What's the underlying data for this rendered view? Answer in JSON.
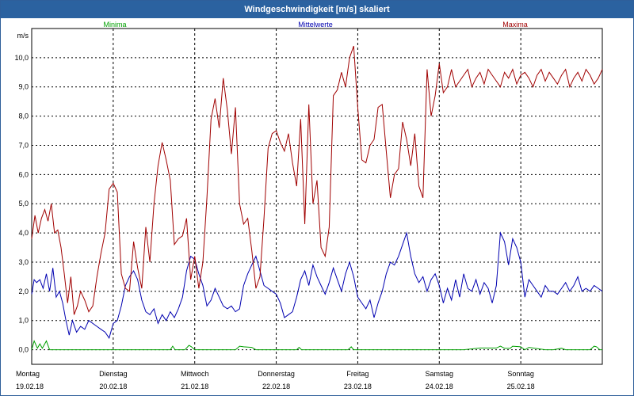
{
  "title": "Windgeschwindigkeit [m/s] skaliert",
  "colors": {
    "titlebar": "#2b62a0",
    "minima": "#00a000",
    "mittelwerte": "#0000b0",
    "maxima": "#a00000"
  },
  "chart_data": {
    "type": "line",
    "title": "Windgeschwindigkeit [m/s] skaliert",
    "ylabel": "m/s",
    "ylim": [
      -0.5,
      11.0
    ],
    "yticks": [
      0.0,
      1.0,
      2.0,
      3.0,
      4.0,
      5.0,
      6.0,
      7.0,
      8.0,
      9.0,
      10.0
    ],
    "ytick_labels": [
      "0,0",
      "1,0",
      "2,0",
      "3,0",
      "4,0",
      "5,0",
      "6,0",
      "7,0",
      "8,0",
      "9,0",
      "10,0"
    ],
    "xlim": [
      0,
      7
    ],
    "day_labels": [
      {
        "day": "Montag",
        "date": "19.02.18"
      },
      {
        "day": "Dienstag",
        "date": "20.02.18"
      },
      {
        "day": "Mittwoch",
        "date": "21.02.18"
      },
      {
        "day": "Donnerstag",
        "date": "22.02.18"
      },
      {
        "day": "Freitag",
        "date": "23.02.18"
      },
      {
        "day": "Samstag",
        "date": "24.02.18"
      },
      {
        "day": "Sonntag",
        "date": "25.02.18"
      }
    ],
    "grid": true,
    "series": [
      {
        "name": "Minima",
        "color": "#00a000",
        "x": [
          0,
          0.03,
          0.07,
          0.1,
          0.13,
          0.18,
          0.22,
          0.26,
          0.3,
          0.5,
          1.0,
          1.5,
          1.7,
          1.73,
          1.76,
          1.8,
          1.88,
          1.93,
          1.96,
          2.0,
          2.5,
          2.55,
          2.6,
          2.7,
          2.75,
          3.0,
          3.25,
          3.28,
          3.31,
          3.5,
          3.88,
          3.92,
          3.95,
          4.0,
          4.5,
          5.0,
          5.3,
          5.5,
          5.7,
          5.75,
          5.8,
          5.87,
          5.9,
          6.0,
          6.05,
          6.1,
          6.3,
          6.4,
          6.5,
          6.55,
          6.7,
          6.85,
          6.9,
          6.93,
          6.97,
          7.0
        ],
        "y": [
          0.0,
          0.3,
          0.05,
          0.2,
          0.05,
          0.3,
          0.0,
          0.0,
          0.0,
          0.0,
          0.0,
          0.0,
          0.0,
          0.12,
          0.0,
          0.0,
          0.0,
          0.15,
          0.1,
          0.0,
          0.0,
          0.12,
          0.1,
          0.08,
          0.0,
          0.0,
          0.0,
          0.08,
          0.0,
          0.0,
          0.0,
          0.1,
          0.0,
          0.0,
          0.0,
          0.0,
          0.0,
          0.06,
          0.06,
          0.12,
          0.05,
          0.05,
          0.12,
          0.1,
          0.0,
          0.08,
          0.0,
          0.0,
          0.05,
          0.0,
          0.0,
          0.0,
          0.12,
          0.1,
          0.0,
          0.0
        ]
      },
      {
        "name": "Mittelwerte",
        "color": "#0000b0",
        "x": [
          0,
          0.03,
          0.06,
          0.1,
          0.14,
          0.18,
          0.22,
          0.26,
          0.3,
          0.34,
          0.38,
          0.42,
          0.46,
          0.5,
          0.55,
          0.6,
          0.65,
          0.7,
          0.75,
          0.8,
          0.85,
          0.9,
          0.95,
          1.0,
          1.05,
          1.1,
          1.15,
          1.2,
          1.25,
          1.3,
          1.35,
          1.4,
          1.45,
          1.5,
          1.55,
          1.6,
          1.65,
          1.7,
          1.75,
          1.8,
          1.85,
          1.9,
          1.95,
          2.0,
          2.05,
          2.1,
          2.15,
          2.2,
          2.25,
          2.3,
          2.35,
          2.4,
          2.45,
          2.5,
          2.55,
          2.6,
          2.65,
          2.7,
          2.75,
          2.8,
          2.85,
          2.9,
          2.95,
          3.0,
          3.05,
          3.1,
          3.15,
          3.2,
          3.25,
          3.3,
          3.35,
          3.4,
          3.45,
          3.5,
          3.55,
          3.6,
          3.65,
          3.7,
          3.75,
          3.8,
          3.85,
          3.9,
          3.95,
          4.0,
          4.05,
          4.1,
          4.15,
          4.2,
          4.25,
          4.3,
          4.35,
          4.4,
          4.45,
          4.5,
          4.55,
          4.6,
          4.65,
          4.7,
          4.75,
          4.8,
          4.85,
          4.9,
          4.95,
          5.0,
          5.05,
          5.1,
          5.15,
          5.2,
          5.25,
          5.3,
          5.35,
          5.4,
          5.45,
          5.5,
          5.55,
          5.6,
          5.65,
          5.7,
          5.75,
          5.8,
          5.85,
          5.9,
          5.95,
          6.0,
          6.05,
          6.1,
          6.15,
          6.2,
          6.25,
          6.3,
          6.35,
          6.4,
          6.45,
          6.5,
          6.55,
          6.6,
          6.65,
          6.7,
          6.75,
          6.8,
          6.85,
          6.9,
          6.95,
          7.0
        ],
        "y": [
          1.9,
          2.4,
          2.3,
          2.4,
          2.1,
          2.6,
          2.0,
          2.8,
          1.8,
          2.0,
          1.6,
          1.0,
          0.5,
          1.0,
          0.6,
          0.8,
          0.7,
          1.0,
          0.9,
          0.8,
          0.7,
          0.6,
          0.4,
          0.9,
          1.0,
          1.5,
          2.2,
          2.5,
          2.7,
          2.4,
          1.7,
          1.3,
          1.2,
          1.4,
          0.9,
          1.2,
          1.0,
          1.3,
          1.1,
          1.4,
          1.8,
          2.7,
          3.2,
          3.1,
          2.6,
          2.2,
          1.5,
          1.7,
          2.1,
          1.8,
          1.5,
          1.4,
          1.5,
          1.3,
          1.4,
          2.2,
          2.6,
          2.9,
          3.2,
          2.7,
          2.2,
          2.1,
          2.0,
          1.9,
          1.6,
          1.1,
          1.2,
          1.3,
          1.8,
          2.4,
          2.7,
          2.2,
          2.9,
          2.5,
          2.2,
          1.9,
          2.3,
          2.8,
          2.4,
          2.0,
          2.6,
          3.0,
          2.5,
          1.8,
          1.6,
          1.4,
          1.7,
          1.1,
          1.6,
          2.0,
          2.6,
          3.0,
          2.9,
          3.2,
          3.6,
          4.0,
          3.2,
          2.6,
          2.3,
          2.5,
          2.0,
          2.4,
          2.6,
          2.2,
          1.6,
          2.1,
          1.7,
          2.4,
          1.8,
          2.6,
          2.1,
          2.0,
          2.4,
          1.9,
          2.3,
          2.1,
          1.6,
          2.2,
          4.0,
          3.7,
          2.9,
          3.8,
          3.5,
          3.0,
          1.8,
          2.4,
          2.2,
          2.0,
          1.8,
          2.2,
          2.0,
          2.0,
          1.9,
          2.1,
          2.3,
          2.0,
          2.2,
          2.5,
          2.0,
          2.1,
          2.0,
          2.2,
          2.1,
          2.0
        ]
      },
      {
        "name": "Maxima",
        "color": "#a00000",
        "x": [
          0,
          0.04,
          0.08,
          0.12,
          0.16,
          0.2,
          0.24,
          0.28,
          0.32,
          0.36,
          0.4,
          0.44,
          0.48,
          0.52,
          0.56,
          0.6,
          0.65,
          0.7,
          0.75,
          0.8,
          0.85,
          0.9,
          0.95,
          1.0,
          1.05,
          1.1,
          1.15,
          1.2,
          1.25,
          1.3,
          1.35,
          1.4,
          1.45,
          1.5,
          1.55,
          1.6,
          1.65,
          1.7,
          1.75,
          1.8,
          1.85,
          1.9,
          1.95,
          2.0,
          2.05,
          2.1,
          2.15,
          2.2,
          2.25,
          2.3,
          2.35,
          2.4,
          2.45,
          2.5,
          2.55,
          2.6,
          2.65,
          2.7,
          2.75,
          2.8,
          2.85,
          2.9,
          2.95,
          3.0,
          3.05,
          3.1,
          3.15,
          3.2,
          3.25,
          3.3,
          3.35,
          3.4,
          3.45,
          3.5,
          3.55,
          3.6,
          3.65,
          3.7,
          3.75,
          3.8,
          3.85,
          3.9,
          3.95,
          4.0,
          4.05,
          4.1,
          4.15,
          4.2,
          4.25,
          4.3,
          4.35,
          4.4,
          4.45,
          4.5,
          4.55,
          4.6,
          4.65,
          4.7,
          4.75,
          4.8,
          4.85,
          4.9,
          4.95,
          5.0,
          5.05,
          5.1,
          5.15,
          5.2,
          5.25,
          5.3,
          5.35,
          5.4,
          5.45,
          5.5,
          5.55,
          5.6,
          5.65,
          5.7,
          5.75,
          5.8,
          5.85,
          5.9,
          5.95,
          6.0,
          6.05,
          6.1,
          6.15,
          6.2,
          6.25,
          6.3,
          6.35,
          6.4,
          6.45,
          6.5,
          6.55,
          6.6,
          6.65,
          6.7,
          6.75,
          6.8,
          6.85,
          6.9,
          6.95,
          7.0
        ],
        "y": [
          3.8,
          4.6,
          4.0,
          4.5,
          4.8,
          4.4,
          5.0,
          4.0,
          4.1,
          3.5,
          2.6,
          1.6,
          2.5,
          1.2,
          1.5,
          2.0,
          1.7,
          1.3,
          1.5,
          2.5,
          3.3,
          4.0,
          5.5,
          5.7,
          5.4,
          2.6,
          2.1,
          2.0,
          3.7,
          2.8,
          2.1,
          4.2,
          3.0,
          5.0,
          6.3,
          7.1,
          6.5,
          5.8,
          3.6,
          3.8,
          3.9,
          4.5,
          2.4,
          3.2,
          2.1,
          3.0,
          5.2,
          7.9,
          8.6,
          7.6,
          9.3,
          8.2,
          6.7,
          8.3,
          5.0,
          4.3,
          4.5,
          3.4,
          2.1,
          2.5,
          4.5,
          6.9,
          7.4,
          7.5,
          7.1,
          6.8,
          7.4,
          6.4,
          5.6,
          7.9,
          4.3,
          8.4,
          5.0,
          5.8,
          3.5,
          3.2,
          4.2,
          8.7,
          8.9,
          9.5,
          9.0,
          10.0,
          10.4,
          8.3,
          6.5,
          6.4,
          7.0,
          7.2,
          8.3,
          8.4,
          6.8,
          5.2,
          6.0,
          6.2,
          7.8,
          7.2,
          6.3,
          7.4,
          5.6,
          5.2,
          9.6,
          8.0,
          8.7,
          9.8,
          8.8,
          9.0,
          9.6,
          9.0,
          9.2,
          9.4,
          9.6,
          9.0,
          9.3,
          9.5,
          9.1,
          9.6,
          9.4,
          9.2,
          9.0,
          9.5,
          9.3,
          9.6,
          9.1,
          9.4,
          9.5,
          9.3,
          9.0,
          9.4,
          9.6,
          9.2,
          9.5,
          9.3,
          9.1,
          9.4,
          9.6,
          9.0,
          9.3,
          9.5,
          9.2,
          9.6,
          9.4,
          9.1,
          9.3,
          9.6
        ]
      }
    ]
  }
}
